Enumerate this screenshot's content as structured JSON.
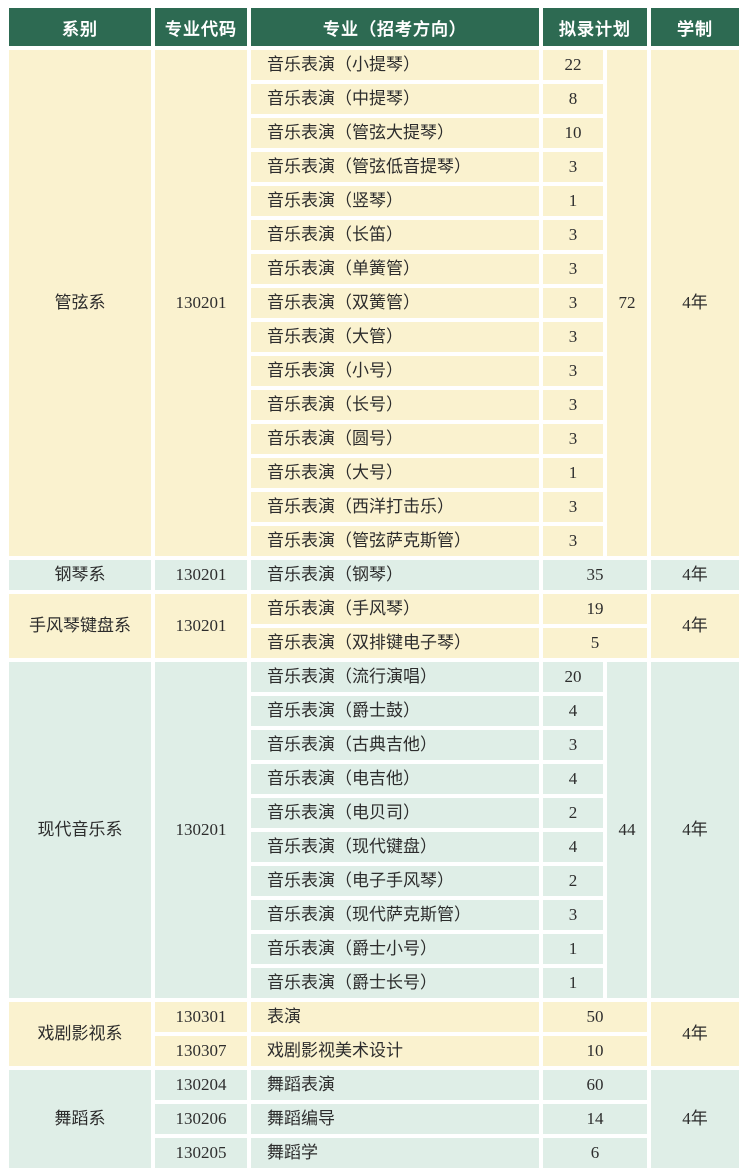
{
  "header": {
    "columns": [
      "系别",
      "专业代码",
      "专业（招考方向）",
      "拟录计划",
      "学制"
    ]
  },
  "colors": {
    "header_bg": "#2d6a52",
    "header_text": "#ffffff",
    "row_cream": "#faf2cf",
    "row_green": "#dfeee7",
    "gap_white": "#ffffff",
    "text": "#2d2d2d"
  },
  "groups": [
    {
      "department": "管弦系",
      "code": "130201",
      "total": "72",
      "duration": "4年",
      "theme": "cream",
      "rows": [
        {
          "major": "音乐表演（小提琴）",
          "plan": "22"
        },
        {
          "major": "音乐表演（中提琴）",
          "plan": "8"
        },
        {
          "major": "音乐表演（管弦大提琴）",
          "plan": "10"
        },
        {
          "major": "音乐表演（管弦低音提琴）",
          "plan": "3"
        },
        {
          "major": "音乐表演（竖琴）",
          "plan": "1"
        },
        {
          "major": "音乐表演（长笛）",
          "plan": "3"
        },
        {
          "major": "音乐表演（单簧管）",
          "plan": "3"
        },
        {
          "major": "音乐表演（双簧管）",
          "plan": "3"
        },
        {
          "major": "音乐表演（大管）",
          "plan": "3"
        },
        {
          "major": "音乐表演（小号）",
          "plan": "3"
        },
        {
          "major": "音乐表演（长号）",
          "plan": "3"
        },
        {
          "major": "音乐表演（圆号）",
          "plan": "3"
        },
        {
          "major": "音乐表演（大号）",
          "plan": "1"
        },
        {
          "major": "音乐表演（西洋打击乐）",
          "plan": "3"
        },
        {
          "major": "音乐表演（管弦萨克斯管）",
          "plan": "3"
        }
      ]
    },
    {
      "department": "钢琴系",
      "code": "130201",
      "total": null,
      "duration": "4年",
      "theme": "green",
      "rows": [
        {
          "major": "音乐表演（钢琴）",
          "plan": "35"
        }
      ]
    },
    {
      "department": "手风琴键盘系",
      "code": "130201",
      "total": null,
      "duration": "4年",
      "theme": "cream",
      "rows": [
        {
          "major": "音乐表演（手风琴）",
          "plan": "19"
        },
        {
          "major": "音乐表演（双排键电子琴）",
          "plan": "5"
        }
      ]
    },
    {
      "department": "现代音乐系",
      "code": "130201",
      "total": "44",
      "duration": "4年",
      "theme": "green",
      "rows": [
        {
          "major": "音乐表演（流行演唱）",
          "plan": "20"
        },
        {
          "major": "音乐表演（爵士鼓）",
          "plan": "4"
        },
        {
          "major": "音乐表演（古典吉他）",
          "plan": "3"
        },
        {
          "major": "音乐表演（电吉他）",
          "plan": "4"
        },
        {
          "major": "音乐表演（电贝司）",
          "plan": "2"
        },
        {
          "major": "音乐表演（现代键盘）",
          "plan": "4"
        },
        {
          "major": "音乐表演（电子手风琴）",
          "plan": "2"
        },
        {
          "major": "音乐表演（现代萨克斯管）",
          "plan": "3"
        },
        {
          "major": "音乐表演（爵士小号）",
          "plan": "1"
        },
        {
          "major": "音乐表演（爵士长号）",
          "plan": "1"
        }
      ]
    },
    {
      "department": "戏剧影视系",
      "code": null,
      "total": null,
      "duration": "4年",
      "theme": "cream",
      "rows": [
        {
          "code": "130301",
          "major": "表演",
          "plan": "50"
        },
        {
          "code": "130307",
          "major": "戏剧影视美术设计",
          "plan": "10"
        }
      ]
    },
    {
      "department": "舞蹈系",
      "code": null,
      "total": null,
      "duration": "4年",
      "theme": "green",
      "rows": [
        {
          "code": "130204",
          "major": "舞蹈表演",
          "plan": "60"
        },
        {
          "code": "130206",
          "major": "舞蹈编导",
          "plan": "14"
        },
        {
          "code": "130205",
          "major": "舞蹈学",
          "plan": "6"
        }
      ]
    }
  ]
}
